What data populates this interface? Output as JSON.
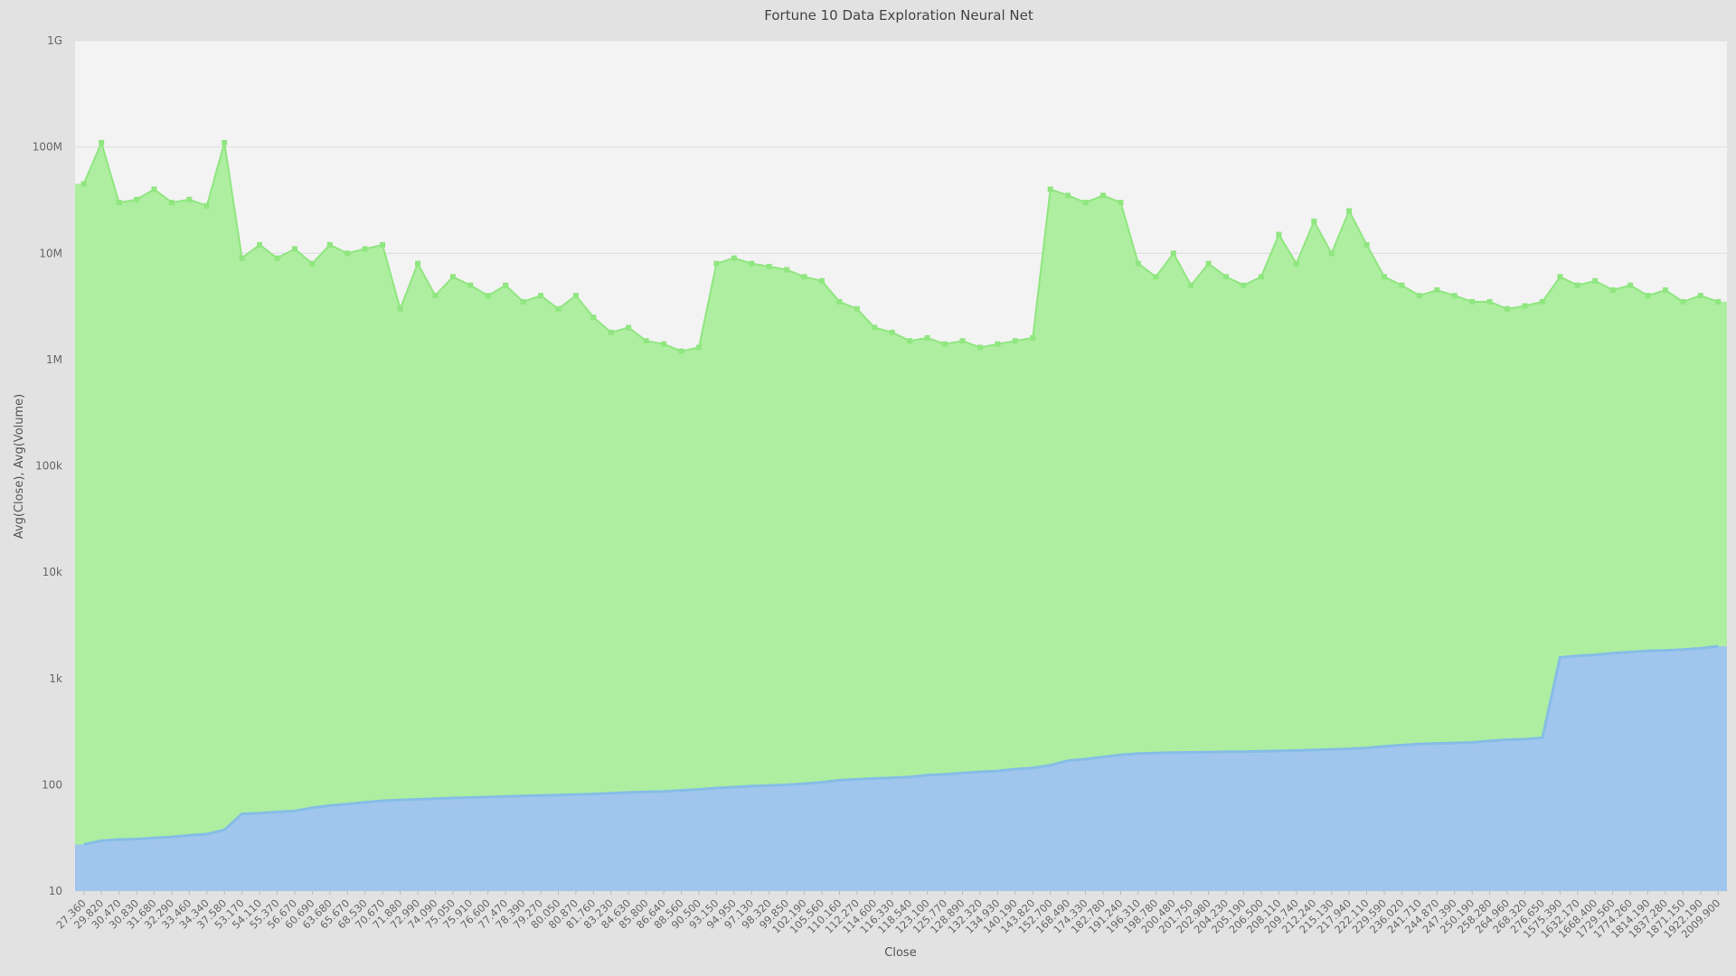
{
  "chart_data": {
    "type": "area",
    "title": "Fortune 10 Data Exploration Neural Net",
    "xlabel": "Close",
    "ylabel": "Avg(Close), Avg(Volume)",
    "y_scale": "log",
    "ylim": [
      10,
      1000000000
    ],
    "y_tick_labels": [
      "10",
      "100",
      "1k",
      "10k",
      "100k",
      "1M",
      "10M",
      "100M",
      "1G"
    ],
    "grid": true,
    "legend": "none",
    "colors": {
      "background": "#e2e2e2",
      "plot_background": "#f3f3f3",
      "volume_fill": "#aeeea0",
      "volume_line": "#90e680",
      "close_fill": "#a1c6ee",
      "close_line": "#86bde6"
    },
    "x_tick_labels": [
      "27.360",
      "29.820",
      "30.470",
      "30.830",
      "31.680",
      "32.290",
      "33.460",
      "34.340",
      "37.580",
      "53.170",
      "54.110",
      "55.370",
      "56.670",
      "60.690",
      "63.680",
      "65.670",
      "68.530",
      "70.670",
      "71.880",
      "72.990",
      "74.090",
      "75.050",
      "75.910",
      "76.600",
      "77.470",
      "78.390",
      "79.270",
      "80.050",
      "80.870",
      "81.760",
      "83.230",
      "84.630",
      "85.800",
      "86.640",
      "88.560",
      "90.500",
      "93.150",
      "94.950",
      "97.130",
      "98.320",
      "99.850",
      "102.190",
      "105.560",
      "110.160",
      "112.270",
      "114.600",
      "116.330",
      "118.540",
      "123.100",
      "125.770",
      "128.890",
      "132.320",
      "134.930",
      "140.190",
      "143.820",
      "152.700",
      "168.490",
      "174.330",
      "182.780",
      "191.240",
      "196.310",
      "198.780",
      "200.480",
      "201.750",
      "202.980",
      "204.230",
      "205.190",
      "206.500",
      "208.110",
      "209.740",
      "212.240",
      "215.130",
      "217.940",
      "222.110",
      "229.590",
      "236.020",
      "241.710",
      "244.870",
      "247.390",
      "250.190",
      "258.280",
      "264.960",
      "268.320",
      "276.650",
      "1575.390",
      "1632.170",
      "1668.400",
      "1729.560",
      "1774.260",
      "1814.190",
      "1837.280",
      "1871.150",
      "1922.190",
      "2009.900"
    ],
    "series": [
      {
        "name": "Avg(Close)",
        "values": [
          27.4,
          29.8,
          30.5,
          30.8,
          31.7,
          32.3,
          33.5,
          34.3,
          37.6,
          53.2,
          54.1,
          55.4,
          56.7,
          60.7,
          63.7,
          65.7,
          68.5,
          70.7,
          71.9,
          73.0,
          74.1,
          75.1,
          75.9,
          76.6,
          77.5,
          78.4,
          79.3,
          80.1,
          80.9,
          81.8,
          83.2,
          84.6,
          85.8,
          86.6,
          88.6,
          90.5,
          93.2,
          95.0,
          97.1,
          98.3,
          99.9,
          102.2,
          105.6,
          110.2,
          112.3,
          114.6,
          116.3,
          118.5,
          123.1,
          125.8,
          128.9,
          132.3,
          134.9,
          140.2,
          143.8,
          152.7,
          168.5,
          174.3,
          182.8,
          191.2,
          196.3,
          198.8,
          200.5,
          201.8,
          203.0,
          204.2,
          205.2,
          206.5,
          208.1,
          209.7,
          212.2,
          215.1,
          217.9,
          222.1,
          229.6,
          236.0,
          241.7,
          244.9,
          247.4,
          250.2,
          258.3,
          265.0,
          268.3,
          276.7,
          1575.4,
          1632.2,
          1668.4,
          1729.6,
          1774.3,
          1814.2,
          1837.3,
          1871.2,
          1922.2,
          2009.9
        ]
      },
      {
        "name": "Avg(Volume)",
        "values": [
          45000000,
          110000000,
          30000000,
          32000000,
          40000000,
          30000000,
          32000000,
          28000000,
          110000000,
          9000000,
          12000000,
          9000000,
          11000000,
          8000000,
          12000000,
          10000000,
          11000000,
          12000000,
          3000000,
          8000000,
          4000000,
          6000000,
          5000000,
          4000000,
          5000000,
          3500000,
          4000000,
          3000000,
          4000000,
          2500000,
          1800000,
          2000000,
          1500000,
          1400000,
          1200000,
          1300000,
          8000000,
          9000000,
          8000000,
          7500000,
          7000000,
          6000000,
          5500000,
          3500000,
          3000000,
          2000000,
          1800000,
          1500000,
          1600000,
          1400000,
          1500000,
          1300000,
          1400000,
          1500000,
          1600000,
          40000000,
          35000000,
          30000000,
          35000000,
          30000000,
          8000000,
          6000000,
          10000000,
          5000000,
          8000000,
          6000000,
          5000000,
          6000000,
          15000000,
          8000000,
          20000000,
          10000000,
          25000000,
          12000000,
          6000000,
          5000000,
          4000000,
          4500000,
          4000000,
          3500000,
          3500000,
          3000000,
          3200000,
          3500000,
          6000000,
          5000000,
          5500000,
          4500000,
          5000000,
          4000000,
          4500000,
          3500000,
          4000000,
          3500000
        ]
      }
    ]
  }
}
